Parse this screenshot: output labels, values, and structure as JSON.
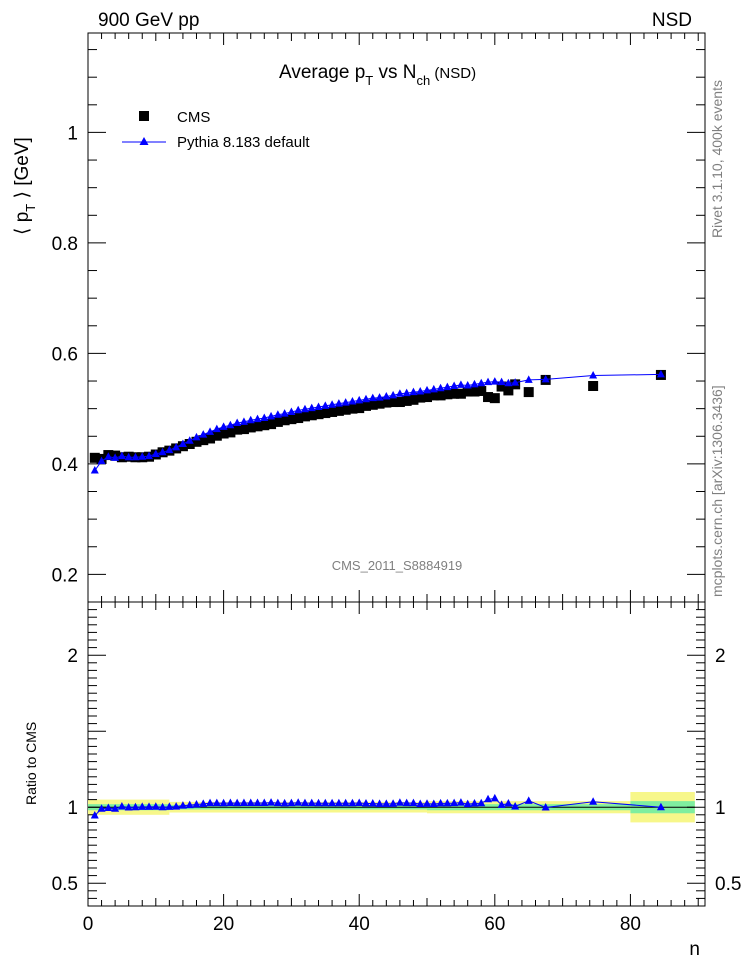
{
  "header": {
    "left": "900 GeV pp",
    "right": "NSD"
  },
  "side_text": {
    "rivet": "Rivet 3.1.10,  400k events",
    "mcplots": "mcplots.cern.ch [arXiv:1306.3436]"
  },
  "chart_data": [
    {
      "type": "scatter",
      "panel": "main",
      "title": {
        "main": "Average p",
        "sub1": "T",
        "mid": " vs N",
        "sub2": "ch",
        "tail": " (NSD)"
      },
      "ylabel": {
        "open": "⟨ p",
        "sub": "T",
        "close": " ⟩ [GeV]"
      },
      "xlabel": "n",
      "xlim": [
        0,
        91
      ],
      "ylim": [
        0.15,
        1.18
      ],
      "yticks": [
        "0.2",
        "0.4",
        "0.6",
        "0.8",
        "1"
      ],
      "xticks": [
        "0",
        "20",
        "40",
        "60",
        "80"
      ],
      "watermark": "CMS_2011_S8884919",
      "legend_position": "top-left",
      "series": [
        {
          "name": "CMS",
          "color": "#000000",
          "marker": "square",
          "x": [
            1,
            2,
            3,
            4,
            5,
            6,
            7,
            8,
            9,
            10,
            11,
            12,
            13,
            14,
            15,
            16,
            17,
            18,
            19,
            20,
            21,
            22,
            23,
            24,
            25,
            26,
            27,
            28,
            29,
            30,
            31,
            32,
            33,
            34,
            35,
            36,
            37,
            38,
            39,
            40,
            41,
            42,
            43,
            44,
            45,
            46,
            47,
            48,
            49,
            50,
            51,
            52,
            53,
            54,
            55,
            56,
            57,
            58,
            59,
            60,
            61,
            62,
            63,
            65,
            67.5,
            74.5,
            84.5
          ],
          "y": [
            0.411,
            0.409,
            0.416,
            0.415,
            0.412,
            0.413,
            0.412,
            0.412,
            0.413,
            0.417,
            0.421,
            0.424,
            0.428,
            0.432,
            0.436,
            0.44,
            0.443,
            0.446,
            0.451,
            0.455,
            0.457,
            0.462,
            0.463,
            0.466,
            0.468,
            0.47,
            0.472,
            0.476,
            0.479,
            0.481,
            0.483,
            0.486,
            0.488,
            0.49,
            0.492,
            0.494,
            0.496,
            0.498,
            0.5,
            0.501,
            0.505,
            0.507,
            0.509,
            0.511,
            0.512,
            0.512,
            0.514,
            0.516,
            0.52,
            0.521,
            0.524,
            0.524,
            0.526,
            0.527,
            0.527,
            0.531,
            0.531,
            0.532,
            0.521,
            0.519,
            0.54,
            0.533,
            0.544,
            0.53,
            0.552,
            0.541,
            0.561
          ]
        },
        {
          "name": "Pythia 8.183 default",
          "color": "#0000ff",
          "marker": "triangle",
          "x": [
            1,
            2,
            3,
            4,
            5,
            6,
            7,
            8,
            9,
            10,
            11,
            12,
            13,
            14,
            15,
            16,
            17,
            18,
            19,
            20,
            21,
            22,
            23,
            24,
            25,
            26,
            27,
            28,
            29,
            30,
            31,
            32,
            33,
            34,
            35,
            36,
            37,
            38,
            39,
            40,
            41,
            42,
            43,
            44,
            45,
            46,
            47,
            48,
            49,
            50,
            51,
            52,
            53,
            54,
            55,
            56,
            57,
            58,
            59,
            60,
            61,
            62,
            63,
            65,
            67.5,
            74.5,
            84.5
          ],
          "y": [
            0.388,
            0.405,
            0.413,
            0.411,
            0.414,
            0.412,
            0.412,
            0.413,
            0.414,
            0.418,
            0.421,
            0.425,
            0.43,
            0.436,
            0.442,
            0.448,
            0.453,
            0.458,
            0.463,
            0.467,
            0.47,
            0.474,
            0.476,
            0.479,
            0.481,
            0.483,
            0.486,
            0.489,
            0.491,
            0.494,
            0.497,
            0.499,
            0.501,
            0.503,
            0.505,
            0.507,
            0.509,
            0.511,
            0.513,
            0.515,
            0.517,
            0.519,
            0.52,
            0.522,
            0.524,
            0.527,
            0.528,
            0.53,
            0.531,
            0.533,
            0.535,
            0.537,
            0.539,
            0.541,
            0.543,
            0.542,
            0.544,
            0.546,
            0.548,
            0.549,
            0.548,
            0.546,
            0.547,
            0.552,
            0.553,
            0.56,
            0.562
          ]
        }
      ]
    },
    {
      "type": "line",
      "panel": "ratio",
      "ylabel": "Ratio to CMS",
      "xlabel": "n",
      "xlim": [
        0,
        91
      ],
      "ylim": [
        0.35,
        2.35
      ],
      "yticks": [
        "0.5",
        "1",
        "2"
      ],
      "xticks": [
        "0",
        "20",
        "40",
        "60",
        "80"
      ],
      "bands": {
        "stat_color": "#7fee9f",
        "total_color": "#f7f78a",
        "segments": [
          {
            "x0": 0,
            "x1": 12,
            "inner": 0.02,
            "outer": 0.05
          },
          {
            "x0": 12,
            "x1": 50,
            "inner": 0.015,
            "outer": 0.035
          },
          {
            "x0": 50,
            "x1": 80,
            "inner": 0.02,
            "outer": 0.04
          },
          {
            "x0": 80,
            "x1": 89.5,
            "inner": 0.04,
            "outer": 0.1
          }
        ]
      },
      "series": [
        {
          "name": "Pythia 8.183 default",
          "color": "#0000ff",
          "marker": "triangle",
          "x": [
            1,
            2,
            3,
            4,
            5,
            6,
            7,
            8,
            9,
            10,
            11,
            12,
            13,
            14,
            15,
            16,
            17,
            18,
            19,
            20,
            21,
            22,
            23,
            24,
            25,
            26,
            27,
            28,
            29,
            30,
            31,
            32,
            33,
            34,
            35,
            36,
            37,
            38,
            39,
            40,
            41,
            42,
            43,
            44,
            45,
            46,
            47,
            48,
            49,
            50,
            51,
            52,
            53,
            54,
            55,
            56,
            57,
            58,
            59,
            60,
            61,
            62,
            63,
            65,
            67.5,
            74.5,
            84.5
          ],
          "y": [
            0.945,
            0.99,
            0.995,
            0.99,
            1.005,
            0.998,
            1.0,
            1.002,
            1.002,
            1.003,
            1.0,
            1.002,
            1.004,
            1.01,
            1.014,
            1.018,
            1.022,
            1.027,
            1.027,
            1.026,
            1.028,
            1.027,
            1.028,
            1.028,
            1.028,
            1.028,
            1.03,
            1.027,
            1.025,
            1.027,
            1.029,
            1.027,
            1.027,
            1.026,
            1.026,
            1.026,
            1.026,
            1.026,
            1.026,
            1.028,
            1.024,
            1.024,
            1.022,
            1.022,
            1.023,
            1.029,
            1.027,
            1.027,
            1.021,
            1.023,
            1.021,
            1.025,
            1.025,
            1.027,
            1.03,
            1.02,
            1.024,
            1.026,
            1.052,
            1.058,
            1.015,
            1.024,
            1.005,
            1.042,
            0.998,
            1.036,
            1.0
          ]
        }
      ]
    }
  ]
}
